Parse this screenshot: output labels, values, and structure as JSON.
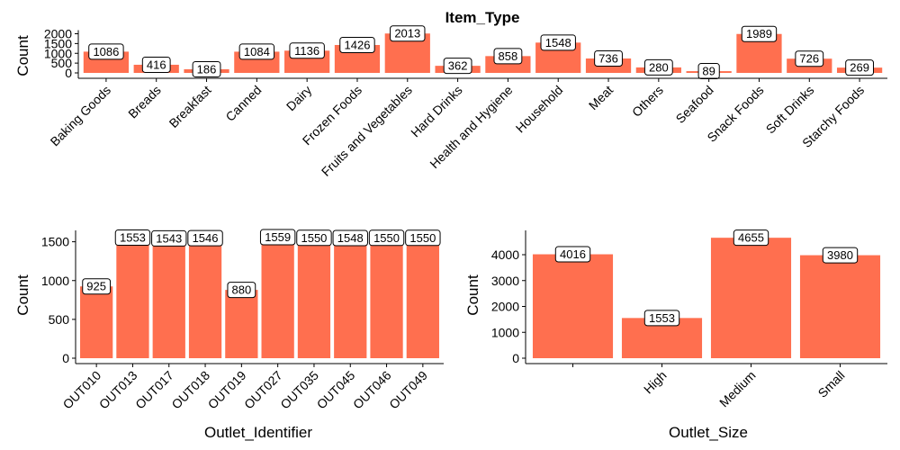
{
  "colors": {
    "bar": "#FF6F4F",
    "axis": "#000000",
    "background": "#FFFFFF"
  },
  "chart_data": [
    {
      "type": "bar",
      "title": "Item_Type",
      "xlabel": "",
      "ylabel": "Count",
      "ylim": [
        0,
        2000
      ],
      "yticks": [
        0,
        500,
        1000,
        1500,
        2000
      ],
      "categories": [
        "Baking Goods",
        "Breads",
        "Breakfast",
        "Canned",
        "Dairy",
        "Frozen Foods",
        "Fruits and Vegetables",
        "Hard Drinks",
        "Health and Hygiene",
        "Household",
        "Meat",
        "Others",
        "Seafood",
        "Snack Foods",
        "Soft Drinks",
        "Starchy Foods"
      ],
      "values": [
        1086,
        416,
        186,
        1084,
        1136,
        1426,
        2013,
        362,
        858,
        1548,
        736,
        280,
        89,
        1989,
        726,
        269
      ]
    },
    {
      "type": "bar",
      "title": "",
      "xlabel": "Outlet_Identifier",
      "ylabel": "Count",
      "ylim": [
        0,
        1600
      ],
      "yticks": [
        0,
        500,
        1000,
        1500
      ],
      "categories": [
        "OUT010",
        "OUT013",
        "OUT017",
        "OUT018",
        "OUT019",
        "OUT027",
        "OUT035",
        "OUT045",
        "OUT046",
        "OUT049"
      ],
      "values": [
        925,
        1553,
        1543,
        1546,
        880,
        1559,
        1550,
        1548,
        1550,
        1550
      ]
    },
    {
      "type": "bar",
      "title": "",
      "xlabel": "Outlet_Size",
      "ylabel": "Count",
      "ylim": [
        0,
        4800
      ],
      "yticks": [
        0,
        1000,
        2000,
        3000,
        4000
      ],
      "categories": [
        "",
        "High",
        "Medium",
        "Small"
      ],
      "values": [
        4016,
        1553,
        4655,
        3980
      ]
    }
  ]
}
